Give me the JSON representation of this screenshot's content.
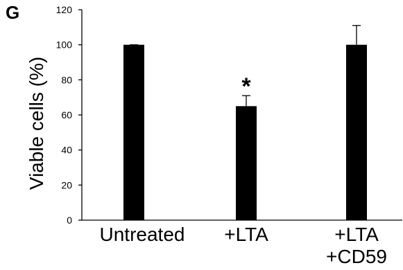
{
  "panel_label": "G",
  "chart_data": {
    "type": "bar",
    "title": "",
    "ylabel": "Viable cells (%)",
    "xlabel": "",
    "ylim": [
      0,
      120
    ],
    "yticks": [
      0,
      20,
      40,
      60,
      80,
      100,
      120
    ],
    "ytick_labels": [
      "0",
      "20",
      "40",
      "60",
      "80",
      "100",
      "120"
    ],
    "grid": false,
    "categories": [
      {
        "lines": [
          "Untreated"
        ]
      },
      {
        "lines": [
          "+LTA"
        ]
      },
      {
        "lines": [
          "+LTA",
          "+CD59"
        ]
      }
    ],
    "values": [
      100,
      65,
      100
    ],
    "error_upper": [
      0,
      6,
      11
    ],
    "significance": [
      "",
      "*",
      ""
    ],
    "bar_color": "#000000",
    "axis_color": "#000000"
  }
}
